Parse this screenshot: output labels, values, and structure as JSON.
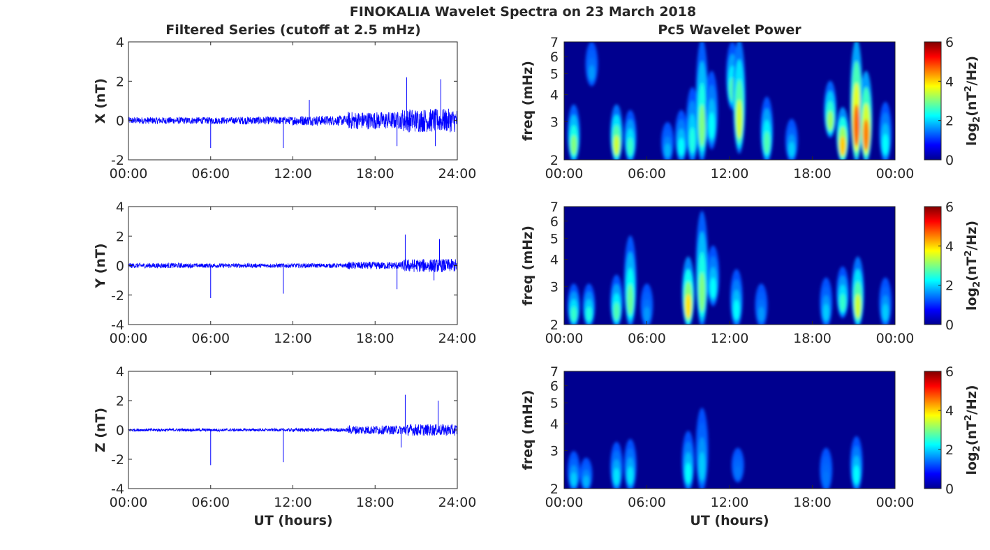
{
  "title": "FINOKALIA Wavelet Spectra on 23 March 2018",
  "left_title": "Filtered Series (cutoff at 2.5 mHz)",
  "right_title": "Pc5 Wavelet Power",
  "colorbar_label_prefix": "log",
  "colorbar_label_sub": "2",
  "colorbar_label_mid": "(nT",
  "colorbar_label_sup": "2",
  "colorbar_label_suffix": "/Hz)",
  "colorbar_range": [
    0,
    6
  ],
  "colorbar_ticks": [
    "0",
    "2",
    "4",
    "6"
  ],
  "freq_axis_label": "freq (mHz)",
  "xlabel": "UT (hours)",
  "colors": {
    "series_line": "#0000ff",
    "spectra_background": "#00008f",
    "axes": "#262626"
  },
  "chart_data": [
    {
      "type": "line",
      "component": "X",
      "ylabel": "X (nT)",
      "ylim": [
        -2,
        4
      ],
      "yticks": [
        "-2",
        "0",
        "2",
        "4"
      ],
      "xticks": [
        "00:00",
        "06:00",
        "12:00",
        "18:00",
        "24:00"
      ],
      "xlim_hours": [
        0,
        24
      ],
      "noise_amplitude": [
        0.35,
        0.35,
        0.4,
        0.5,
        0.9,
        1.2
      ],
      "spikes": [
        {
          "hour": 6.0,
          "value": -1.4
        },
        {
          "hour": 11.3,
          "value": -1.4
        },
        {
          "hour": 13.2,
          "value": 1.05
        },
        {
          "hour": 19.6,
          "value": -1.3
        },
        {
          "hour": 20.3,
          "value": 2.2
        },
        {
          "hour": 22.8,
          "value": 2.1
        },
        {
          "hour": 22.4,
          "value": -1.3
        }
      ]
    },
    {
      "type": "line",
      "component": "Y",
      "ylabel": "Y (nT)",
      "ylim": [
        -4,
        4
      ],
      "yticks": [
        "-4",
        "-2",
        "0",
        "2",
        "4"
      ],
      "xticks": [
        "00:00",
        "06:00",
        "12:00",
        "18:00",
        "24:00"
      ],
      "xlim_hours": [
        0,
        24
      ],
      "noise_amplitude": [
        0.35,
        0.3,
        0.3,
        0.3,
        0.5,
        0.9
      ],
      "spikes": [
        {
          "hour": 6.0,
          "value": -2.2
        },
        {
          "hour": 11.3,
          "value": -1.9
        },
        {
          "hour": 19.6,
          "value": -1.6
        },
        {
          "hour": 20.2,
          "value": 2.1
        },
        {
          "hour": 22.7,
          "value": 1.8
        },
        {
          "hour": 22.3,
          "value": -1.0
        }
      ]
    },
    {
      "type": "line",
      "component": "Z",
      "ylabel": "Z (nT)",
      "ylim": [
        -4,
        4
      ],
      "yticks": [
        "-4",
        "-2",
        "0",
        "2",
        "4"
      ],
      "xticks": [
        "00:00",
        "06:00",
        "12:00",
        "18:00",
        "24:00"
      ],
      "xlim_hours": [
        0,
        24
      ],
      "noise_amplitude": [
        0.2,
        0.2,
        0.2,
        0.25,
        0.6,
        0.8
      ],
      "spikes": [
        {
          "hour": 6.0,
          "value": -2.4
        },
        {
          "hour": 11.3,
          "value": -2.2
        },
        {
          "hour": 20.2,
          "value": 2.4
        },
        {
          "hour": 22.6,
          "value": 2.0
        },
        {
          "hour": 19.9,
          "value": -1.2
        }
      ]
    },
    {
      "type": "heatmap",
      "component": "X",
      "ylabel": "freq (mHz)",
      "ylim_mhz": [
        2,
        7
      ],
      "yscale": "log",
      "yticks": [
        "2",
        "3",
        "4",
        "5",
        "6",
        "7"
      ],
      "xticks": [
        "00:00",
        "06:00",
        "12:00",
        "18:00",
        "00:00"
      ],
      "xlim_hours": [
        0,
        24
      ],
      "zlim": [
        0,
        6
      ],
      "blobs": [
        {
          "hour": 0.7,
          "fmin": 2.0,
          "fmax": 3.5,
          "peak": 3.0
        },
        {
          "hour": 2.0,
          "fmin": 4.5,
          "fmax": 6.8,
          "peak": 1.2
        },
        {
          "hour": 3.8,
          "fmin": 2.0,
          "fmax": 3.5,
          "peak": 3.6
        },
        {
          "hour": 4.8,
          "fmin": 2.0,
          "fmax": 3.3,
          "peak": 2.4
        },
        {
          "hour": 7.5,
          "fmin": 2.0,
          "fmax": 2.9,
          "peak": 1.4
        },
        {
          "hour": 8.5,
          "fmin": 2.0,
          "fmax": 3.3,
          "peak": 2.0
        },
        {
          "hour": 9.3,
          "fmin": 2.0,
          "fmax": 4.2,
          "peak": 2.2
        },
        {
          "hour": 10.0,
          "fmin": 2.0,
          "fmax": 7.0,
          "peak": 3.0
        },
        {
          "hour": 10.7,
          "fmin": 2.3,
          "fmax": 5.0,
          "peak": 2.0
        },
        {
          "hour": 12.2,
          "fmin": 3.5,
          "fmax": 6.8,
          "peak": 2.6
        },
        {
          "hour": 12.7,
          "fmin": 2.2,
          "fmax": 7.0,
          "peak": 3.6
        },
        {
          "hour": 14.7,
          "fmin": 2.0,
          "fmax": 3.8,
          "peak": 2.6
        },
        {
          "hour": 16.5,
          "fmin": 2.0,
          "fmax": 3.0,
          "peak": 1.6
        },
        {
          "hour": 19.3,
          "fmin": 2.6,
          "fmax": 4.5,
          "peak": 3.2
        },
        {
          "hour": 20.2,
          "fmin": 2.0,
          "fmax": 3.4,
          "peak": 4.4
        },
        {
          "hour": 21.2,
          "fmin": 2.0,
          "fmax": 7.0,
          "peak": 5.2
        },
        {
          "hour": 21.9,
          "fmin": 2.0,
          "fmax": 5.0,
          "peak": 5.0
        },
        {
          "hour": 23.3,
          "fmin": 2.0,
          "fmax": 3.6,
          "peak": 2.0
        }
      ]
    },
    {
      "type": "heatmap",
      "component": "Y",
      "ylabel": "freq (mHz)",
      "ylim_mhz": [
        2,
        7
      ],
      "yscale": "log",
      "yticks": [
        "2",
        "3",
        "4",
        "5",
        "6",
        "7"
      ],
      "xticks": [
        "00:00",
        "06:00",
        "12:00",
        "18:00",
        "00:00"
      ],
      "xlim_hours": [
        0,
        24
      ],
      "zlim": [
        0,
        6
      ],
      "blobs": [
        {
          "hour": 0.7,
          "fmin": 2.0,
          "fmax": 3.0,
          "peak": 2.4
        },
        {
          "hour": 1.8,
          "fmin": 2.0,
          "fmax": 3.0,
          "peak": 2.2
        },
        {
          "hour": 3.8,
          "fmin": 2.0,
          "fmax": 3.3,
          "peak": 2.6
        },
        {
          "hour": 4.8,
          "fmin": 2.0,
          "fmax": 5.0,
          "peak": 2.8
        },
        {
          "hour": 6.0,
          "fmin": 2.0,
          "fmax": 3.0,
          "peak": 1.2
        },
        {
          "hour": 9.0,
          "fmin": 2.0,
          "fmax": 4.0,
          "peak": 4.2
        },
        {
          "hour": 10.0,
          "fmin": 2.0,
          "fmax": 6.5,
          "peak": 3.0
        },
        {
          "hour": 10.8,
          "fmin": 2.5,
          "fmax": 4.5,
          "peak": 2.0
        },
        {
          "hour": 12.5,
          "fmin": 2.0,
          "fmax": 3.5,
          "peak": 2.0
        },
        {
          "hour": 14.3,
          "fmin": 2.0,
          "fmax": 3.0,
          "peak": 1.2
        },
        {
          "hour": 19.0,
          "fmin": 2.0,
          "fmax": 3.2,
          "peak": 1.6
        },
        {
          "hour": 20.2,
          "fmin": 2.2,
          "fmax": 3.6,
          "peak": 2.4
        },
        {
          "hour": 21.3,
          "fmin": 2.0,
          "fmax": 4.0,
          "peak": 3.6
        },
        {
          "hour": 23.3,
          "fmin": 2.0,
          "fmax": 3.2,
          "peak": 1.6
        }
      ]
    },
    {
      "type": "heatmap",
      "component": "Z",
      "ylabel": "freq (mHz)",
      "ylim_mhz": [
        2,
        7
      ],
      "yscale": "log",
      "yticks": [
        "2",
        "3",
        "4",
        "5",
        "6",
        "7"
      ],
      "xticks": [
        "00:00",
        "06:00",
        "12:00",
        "18:00",
        "00:00"
      ],
      "xlim_hours": [
        0,
        24
      ],
      "zlim": [
        0,
        6
      ],
      "blobs": [
        {
          "hour": 0.7,
          "fmin": 2.0,
          "fmax": 2.9,
          "peak": 1.6
        },
        {
          "hour": 1.6,
          "fmin": 2.0,
          "fmax": 2.7,
          "peak": 1.4
        },
        {
          "hour": 3.8,
          "fmin": 2.0,
          "fmax": 3.2,
          "peak": 1.8
        },
        {
          "hour": 4.8,
          "fmin": 2.0,
          "fmax": 3.3,
          "peak": 1.8
        },
        {
          "hour": 9.0,
          "fmin": 2.0,
          "fmax": 3.6,
          "peak": 2.0
        },
        {
          "hour": 10.0,
          "fmin": 2.0,
          "fmax": 4.6,
          "peak": 1.6
        },
        {
          "hour": 12.6,
          "fmin": 2.2,
          "fmax": 3.0,
          "peak": 0.8
        },
        {
          "hour": 19.0,
          "fmin": 2.0,
          "fmax": 3.0,
          "peak": 0.8
        },
        {
          "hour": 21.2,
          "fmin": 2.0,
          "fmax": 3.4,
          "peak": 2.0
        }
      ]
    }
  ]
}
